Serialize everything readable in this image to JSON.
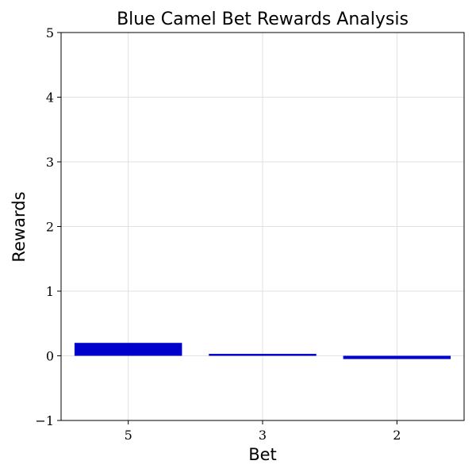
{
  "chart_data": {
    "type": "bar",
    "title": "Blue Camel Bet Rewards Analysis",
    "xlabel": "Bet",
    "ylabel": "Rewards",
    "categories": [
      "5",
      "3",
      "2"
    ],
    "values": [
      0.2,
      0.03,
      -0.05
    ],
    "ylim": [
      -1,
      5
    ],
    "yticks": [
      -1,
      0,
      1,
      2,
      3,
      4,
      5
    ],
    "ytick_labels": [
      "−1",
      "0",
      "1",
      "2",
      "3",
      "4",
      "5"
    ],
    "grid": true,
    "bar_color": "#0000cd"
  }
}
